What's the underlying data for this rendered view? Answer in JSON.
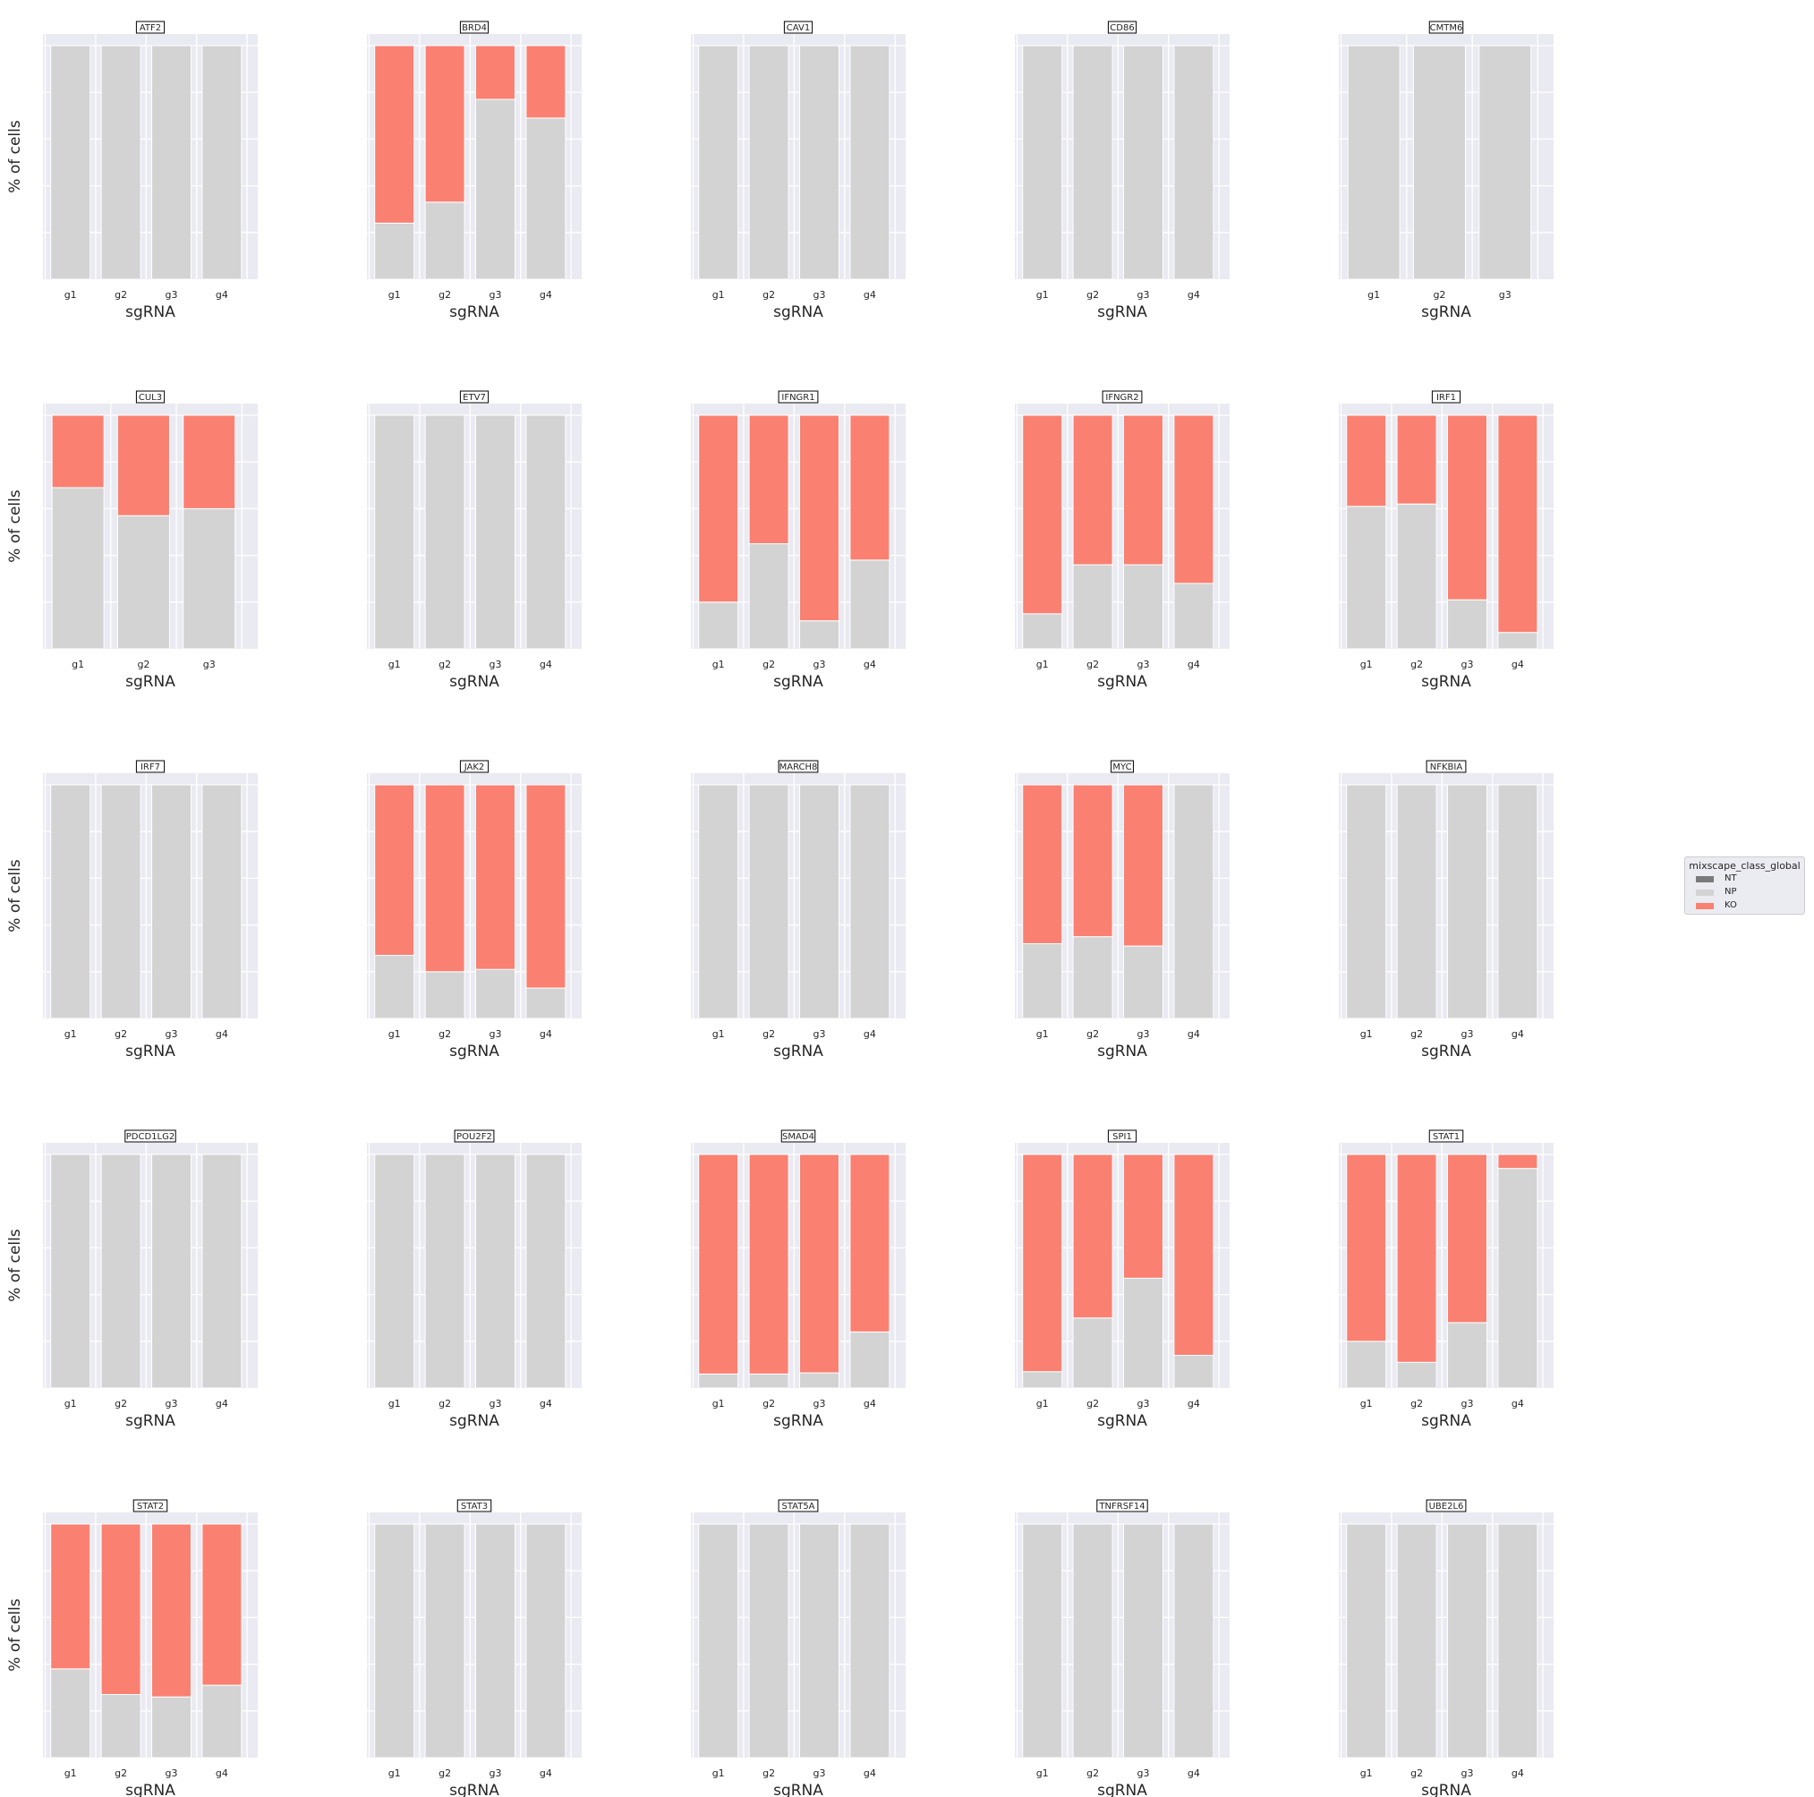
{
  "figure": {
    "background": "#ffffff",
    "panel_background": "#eaeaf2",
    "grid_color": "#ffffff"
  },
  "legend": {
    "title": "mixscape_class_global",
    "placement": "right",
    "entries": [
      {
        "label": "NT",
        "color": "#7a7a7a"
      },
      {
        "label": "NP",
        "color": "#d3d3d3"
      },
      {
        "label": "KO",
        "color": "#fa8072"
      }
    ]
  },
  "chart_data": [
    {
      "type": "bar",
      "stacked": true,
      "title": "ATF2",
      "xlabel": "sgRNA",
      "ylabel": "% of cells",
      "ylim": [
        0,
        100
      ],
      "categories": [
        "g1",
        "g2",
        "g3",
        "g4"
      ],
      "series": [
        {
          "name": "NP",
          "values": [
            100,
            100,
            100,
            100
          ]
        },
        {
          "name": "KO",
          "values": [
            0,
            0,
            0,
            0
          ]
        }
      ]
    },
    {
      "type": "bar",
      "stacked": true,
      "title": "BRD4",
      "xlabel": "sgRNA",
      "ylabel": "",
      "ylim": [
        0,
        100
      ],
      "categories": [
        "g1",
        "g2",
        "g3",
        "g4"
      ],
      "series": [
        {
          "name": "NP",
          "values": [
            24,
            33,
            77,
            69
          ]
        },
        {
          "name": "KO",
          "values": [
            76,
            67,
            23,
            31
          ]
        }
      ]
    },
    {
      "type": "bar",
      "stacked": true,
      "title": "CAV1",
      "xlabel": "sgRNA",
      "ylabel": "",
      "ylim": [
        0,
        100
      ],
      "categories": [
        "g1",
        "g2",
        "g3",
        "g4"
      ],
      "series": [
        {
          "name": "NP",
          "values": [
            100,
            100,
            100,
            100
          ]
        },
        {
          "name": "KO",
          "values": [
            0,
            0,
            0,
            0
          ]
        }
      ]
    },
    {
      "type": "bar",
      "stacked": true,
      "title": "CD86",
      "xlabel": "sgRNA",
      "ylabel": "",
      "ylim": [
        0,
        100
      ],
      "categories": [
        "g1",
        "g2",
        "g3",
        "g4"
      ],
      "series": [
        {
          "name": "NP",
          "values": [
            100,
            100,
            100,
            100
          ]
        },
        {
          "name": "KO",
          "values": [
            0,
            0,
            0,
            0
          ]
        }
      ]
    },
    {
      "type": "bar",
      "stacked": true,
      "title": "CMTM6",
      "xlabel": "sgRNA",
      "ylabel": "",
      "ylim": [
        0,
        100
      ],
      "categories": [
        "g1",
        "g2",
        "g3"
      ],
      "series": [
        {
          "name": "NP",
          "values": [
            100,
            100,
            100
          ]
        },
        {
          "name": "KO",
          "values": [
            0,
            0,
            0
          ]
        }
      ]
    },
    {
      "type": "bar",
      "stacked": true,
      "title": "CUL3",
      "xlabel": "sgRNA",
      "ylabel": "% of cells",
      "ylim": [
        0,
        100
      ],
      "categories": [
        "g1",
        "g2",
        "g3"
      ],
      "series": [
        {
          "name": "NP",
          "values": [
            69,
            57,
            60
          ]
        },
        {
          "name": "KO",
          "values": [
            31,
            43,
            40
          ]
        }
      ]
    },
    {
      "type": "bar",
      "stacked": true,
      "title": "ETV7",
      "xlabel": "sgRNA",
      "ylabel": "",
      "ylim": [
        0,
        100
      ],
      "categories": [
        "g1",
        "g2",
        "g3",
        "g4"
      ],
      "series": [
        {
          "name": "NP",
          "values": [
            100,
            100,
            100,
            100
          ]
        },
        {
          "name": "KO",
          "values": [
            0,
            0,
            0,
            0
          ]
        }
      ]
    },
    {
      "type": "bar",
      "stacked": true,
      "title": "IFNGR1",
      "xlabel": "sgRNA",
      "ylabel": "",
      "ylim": [
        0,
        100
      ],
      "categories": [
        "g1",
        "g2",
        "g3",
        "g4"
      ],
      "series": [
        {
          "name": "NP",
          "values": [
            20,
            45,
            12,
            38
          ]
        },
        {
          "name": "KO",
          "values": [
            80,
            55,
            88,
            62
          ]
        }
      ]
    },
    {
      "type": "bar",
      "stacked": true,
      "title": "IFNGR2",
      "xlabel": "sgRNA",
      "ylabel": "",
      "ylim": [
        0,
        100
      ],
      "categories": [
        "g1",
        "g2",
        "g3",
        "g4"
      ],
      "series": [
        {
          "name": "NP",
          "values": [
            15,
            36,
            36,
            28
          ]
        },
        {
          "name": "KO",
          "values": [
            85,
            64,
            64,
            72
          ]
        }
      ]
    },
    {
      "type": "bar",
      "stacked": true,
      "title": "IRF1",
      "xlabel": "sgRNA",
      "ylabel": "",
      "ylim": [
        0,
        100
      ],
      "categories": [
        "g1",
        "g2",
        "g3",
        "g4"
      ],
      "series": [
        {
          "name": "NP",
          "values": [
            61,
            62,
            21,
            7
          ]
        },
        {
          "name": "KO",
          "values": [
            39,
            38,
            79,
            93
          ]
        }
      ]
    },
    {
      "type": "bar",
      "stacked": true,
      "title": "IRF7",
      "xlabel": "sgRNA",
      "ylabel": "% of cells",
      "ylim": [
        0,
        100
      ],
      "categories": [
        "g1",
        "g2",
        "g3",
        "g4"
      ],
      "series": [
        {
          "name": "NP",
          "values": [
            100,
            100,
            100,
            100
          ]
        },
        {
          "name": "KO",
          "values": [
            0,
            0,
            0,
            0
          ]
        }
      ]
    },
    {
      "type": "bar",
      "stacked": true,
      "title": "JAK2",
      "xlabel": "sgRNA",
      "ylabel": "",
      "ylim": [
        0,
        100
      ],
      "categories": [
        "g1",
        "g2",
        "g3",
        "g4"
      ],
      "series": [
        {
          "name": "NP",
          "values": [
            27,
            20,
            21,
            13
          ]
        },
        {
          "name": "KO",
          "values": [
            73,
            80,
            79,
            87
          ]
        }
      ]
    },
    {
      "type": "bar",
      "stacked": true,
      "title": "MARCH8",
      "xlabel": "sgRNA",
      "ylabel": "",
      "ylim": [
        0,
        100
      ],
      "categories": [
        "g1",
        "g2",
        "g3",
        "g4"
      ],
      "series": [
        {
          "name": "NP",
          "values": [
            100,
            100,
            100,
            100
          ]
        },
        {
          "name": "KO",
          "values": [
            0,
            0,
            0,
            0
          ]
        }
      ]
    },
    {
      "type": "bar",
      "stacked": true,
      "title": "MYC",
      "xlabel": "sgRNA",
      "ylabel": "",
      "ylim": [
        0,
        100
      ],
      "categories": [
        "g1",
        "g2",
        "g3",
        "g4"
      ],
      "series": [
        {
          "name": "NP",
          "values": [
            32,
            35,
            31,
            100
          ]
        },
        {
          "name": "KO",
          "values": [
            68,
            65,
            69,
            0
          ]
        }
      ]
    },
    {
      "type": "bar",
      "stacked": true,
      "title": "NFKBIA",
      "xlabel": "sgRNA",
      "ylabel": "",
      "ylim": [
        0,
        100
      ],
      "categories": [
        "g1",
        "g2",
        "g3",
        "g4"
      ],
      "series": [
        {
          "name": "NP",
          "values": [
            100,
            100,
            100,
            100
          ]
        },
        {
          "name": "KO",
          "values": [
            0,
            0,
            0,
            0
          ]
        }
      ]
    },
    {
      "type": "bar",
      "stacked": true,
      "title": "PDCD1LG2",
      "xlabel": "sgRNA",
      "ylabel": "% of cells",
      "ylim": [
        0,
        100
      ],
      "categories": [
        "g1",
        "g2",
        "g3",
        "g4"
      ],
      "series": [
        {
          "name": "NP",
          "values": [
            100,
            100,
            100,
            100
          ]
        },
        {
          "name": "KO",
          "values": [
            0,
            0,
            0,
            0
          ]
        }
      ]
    },
    {
      "type": "bar",
      "stacked": true,
      "title": "POU2F2",
      "xlabel": "sgRNA",
      "ylabel": "",
      "ylim": [
        0,
        100
      ],
      "categories": [
        "g1",
        "g2",
        "g3",
        "g4"
      ],
      "series": [
        {
          "name": "NP",
          "values": [
            100,
            100,
            100,
            100
          ]
        },
        {
          "name": "KO",
          "values": [
            0,
            0,
            0,
            0
          ]
        }
      ]
    },
    {
      "type": "bar",
      "stacked": true,
      "title": "SMAD4",
      "xlabel": "sgRNA",
      "ylabel": "",
      "ylim": [
        0,
        100
      ],
      "categories": [
        "g1",
        "g2",
        "g3",
        "g4"
      ],
      "series": [
        {
          "name": "NP",
          "values": [
            6,
            6,
            6.5,
            24
          ]
        },
        {
          "name": "KO",
          "values": [
            94,
            94,
            93.5,
            76
          ]
        }
      ]
    },
    {
      "type": "bar",
      "stacked": true,
      "title": "SPI1",
      "xlabel": "sgRNA",
      "ylabel": "",
      "ylim": [
        0,
        100
      ],
      "categories": [
        "g1",
        "g2",
        "g3",
        "g4"
      ],
      "series": [
        {
          "name": "NP",
          "values": [
            7,
            30,
            47,
            14
          ]
        },
        {
          "name": "KO",
          "values": [
            93,
            70,
            53,
            86
          ]
        }
      ]
    },
    {
      "type": "bar",
      "stacked": true,
      "title": "STAT1",
      "xlabel": "sgRNA",
      "ylabel": "",
      "ylim": [
        0,
        100
      ],
      "categories": [
        "g1",
        "g2",
        "g3",
        "g4"
      ],
      "series": [
        {
          "name": "NP",
          "values": [
            20,
            11,
            28,
            94
          ]
        },
        {
          "name": "KO",
          "values": [
            80,
            89,
            72,
            6
          ]
        }
      ]
    },
    {
      "type": "bar",
      "stacked": true,
      "title": "STAT2",
      "xlabel": "sgRNA",
      "ylabel": "% of cells",
      "ylim": [
        0,
        100
      ],
      "categories": [
        "g1",
        "g2",
        "g3",
        "g4"
      ],
      "series": [
        {
          "name": "NP",
          "values": [
            38,
            27,
            26,
            31
          ]
        },
        {
          "name": "KO",
          "values": [
            62,
            73,
            74,
            69
          ]
        }
      ]
    },
    {
      "type": "bar",
      "stacked": true,
      "title": "STAT3",
      "xlabel": "sgRNA",
      "ylabel": "",
      "ylim": [
        0,
        100
      ],
      "categories": [
        "g1",
        "g2",
        "g3",
        "g4"
      ],
      "series": [
        {
          "name": "NP",
          "values": [
            100,
            100,
            100,
            100
          ]
        },
        {
          "name": "KO",
          "values": [
            0,
            0,
            0,
            0
          ]
        }
      ]
    },
    {
      "type": "bar",
      "stacked": true,
      "title": "STAT5A",
      "xlabel": "sgRNA",
      "ylabel": "",
      "ylim": [
        0,
        100
      ],
      "categories": [
        "g1",
        "g2",
        "g3",
        "g4"
      ],
      "series": [
        {
          "name": "NP",
          "values": [
            100,
            100,
            100,
            100
          ]
        },
        {
          "name": "KO",
          "values": [
            0,
            0,
            0,
            0
          ]
        }
      ]
    },
    {
      "type": "bar",
      "stacked": true,
      "title": "TNFRSF14",
      "xlabel": "sgRNA",
      "ylabel": "",
      "ylim": [
        0,
        100
      ],
      "categories": [
        "g1",
        "g2",
        "g3",
        "g4"
      ],
      "series": [
        {
          "name": "NP",
          "values": [
            100,
            100,
            100,
            100
          ]
        },
        {
          "name": "KO",
          "values": [
            0,
            0,
            0,
            0
          ]
        }
      ]
    },
    {
      "type": "bar",
      "stacked": true,
      "title": "UBE2L6",
      "xlabel": "sgRNA",
      "ylabel": "",
      "ylim": [
        0,
        100
      ],
      "categories": [
        "g1",
        "g2",
        "g3",
        "g4"
      ],
      "series": [
        {
          "name": "NP",
          "values": [
            100,
            100,
            100,
            100
          ]
        },
        {
          "name": "KO",
          "values": [
            0,
            0,
            0,
            0
          ]
        }
      ]
    }
  ]
}
